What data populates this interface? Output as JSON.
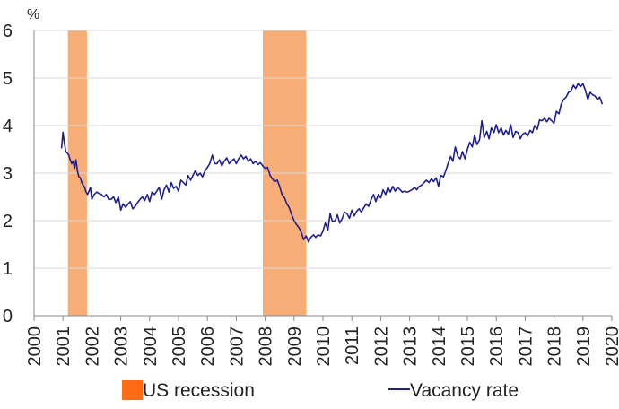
{
  "chart_data": {
    "type": "line",
    "unit_label": "%",
    "xlim": [
      2000,
      2020
    ],
    "ylim": [
      0,
      6
    ],
    "x_ticks": [
      "2000",
      "2001",
      "2002",
      "2003",
      "2004",
      "2005",
      "2006",
      "2007",
      "2008",
      "2009",
      "2010",
      "2011",
      "2012",
      "2013",
      "2014",
      "2015",
      "2016",
      "2017",
      "2018",
      "2019",
      "2020"
    ],
    "y_ticks": [
      "0",
      "1",
      "2",
      "3",
      "4",
      "5",
      "6"
    ],
    "grid": "horizontal",
    "legend_position": "bottom",
    "recessions": {
      "name": "US recession",
      "color": "#f7ad78",
      "legend_color": "#ff6a13",
      "periods": [
        [
          2001.17,
          2001.83
        ],
        [
          2007.92,
          2009.42
        ]
      ]
    },
    "series": [
      {
        "name": "Vacancy rate",
        "color": "#1f1f8f",
        "points": [
          [
            2000.95,
            3.52
          ],
          [
            2001.0,
            3.86
          ],
          [
            2001.05,
            3.63
          ],
          [
            2001.1,
            3.45
          ],
          [
            2001.15,
            3.42
          ],
          [
            2001.2,
            3.38
          ],
          [
            2001.25,
            3.28
          ],
          [
            2001.3,
            3.2
          ],
          [
            2001.35,
            3.25
          ],
          [
            2001.4,
            3.1
          ],
          [
            2001.45,
            3.28
          ],
          [
            2001.5,
            3.05
          ],
          [
            2001.55,
            2.92
          ],
          [
            2001.6,
            2.9
          ],
          [
            2001.65,
            2.8
          ],
          [
            2001.7,
            2.75
          ],
          [
            2001.75,
            2.7
          ],
          [
            2001.8,
            2.6
          ],
          [
            2001.85,
            2.55
          ],
          [
            2001.9,
            2.62
          ],
          [
            2001.95,
            2.7
          ],
          [
            2002.0,
            2.45
          ],
          [
            2002.08,
            2.55
          ],
          [
            2002.17,
            2.6
          ],
          [
            2002.25,
            2.57
          ],
          [
            2002.33,
            2.55
          ],
          [
            2002.42,
            2.5
          ],
          [
            2002.5,
            2.55
          ],
          [
            2002.58,
            2.45
          ],
          [
            2002.67,
            2.45
          ],
          [
            2002.75,
            2.5
          ],
          [
            2002.83,
            2.38
          ],
          [
            2002.92,
            2.5
          ],
          [
            2003.0,
            2.22
          ],
          [
            2003.08,
            2.35
          ],
          [
            2003.17,
            2.28
          ],
          [
            2003.25,
            2.35
          ],
          [
            2003.33,
            2.4
          ],
          [
            2003.42,
            2.25
          ],
          [
            2003.5,
            2.3
          ],
          [
            2003.58,
            2.38
          ],
          [
            2003.67,
            2.45
          ],
          [
            2003.75,
            2.5
          ],
          [
            2003.83,
            2.42
          ],
          [
            2003.92,
            2.55
          ],
          [
            2004.0,
            2.4
          ],
          [
            2004.08,
            2.6
          ],
          [
            2004.17,
            2.55
          ],
          [
            2004.25,
            2.62
          ],
          [
            2004.33,
            2.7
          ],
          [
            2004.42,
            2.45
          ],
          [
            2004.5,
            2.65
          ],
          [
            2004.58,
            2.75
          ],
          [
            2004.67,
            2.6
          ],
          [
            2004.75,
            2.8
          ],
          [
            2004.83,
            2.68
          ],
          [
            2004.92,
            2.72
          ],
          [
            2005.0,
            2.62
          ],
          [
            2005.08,
            2.85
          ],
          [
            2005.17,
            2.8
          ],
          [
            2005.25,
            2.75
          ],
          [
            2005.33,
            2.95
          ],
          [
            2005.42,
            2.85
          ],
          [
            2005.5,
            2.95
          ],
          [
            2005.58,
            3.05
          ],
          [
            2005.67,
            2.95
          ],
          [
            2005.75,
            3.0
          ],
          [
            2005.83,
            2.92
          ],
          [
            2005.92,
            3.05
          ],
          [
            2006.0,
            3.12
          ],
          [
            2006.08,
            3.2
          ],
          [
            2006.17,
            3.38
          ],
          [
            2006.25,
            3.2
          ],
          [
            2006.33,
            3.2
          ],
          [
            2006.42,
            3.28
          ],
          [
            2006.5,
            3.15
          ],
          [
            2006.58,
            3.25
          ],
          [
            2006.67,
            3.32
          ],
          [
            2006.75,
            3.2
          ],
          [
            2006.83,
            3.25
          ],
          [
            2006.92,
            3.3
          ],
          [
            2007.0,
            3.2
          ],
          [
            2007.08,
            3.3
          ],
          [
            2007.17,
            3.38
          ],
          [
            2007.25,
            3.3
          ],
          [
            2007.33,
            3.35
          ],
          [
            2007.42,
            3.25
          ],
          [
            2007.5,
            3.3
          ],
          [
            2007.58,
            3.2
          ],
          [
            2007.67,
            3.25
          ],
          [
            2007.75,
            3.18
          ],
          [
            2007.83,
            3.22
          ],
          [
            2007.92,
            3.15
          ],
          [
            2008.0,
            3.1
          ],
          [
            2008.08,
            3.12
          ],
          [
            2008.17,
            2.95
          ],
          [
            2008.25,
            2.88
          ],
          [
            2008.33,
            2.82
          ],
          [
            2008.42,
            2.85
          ],
          [
            2008.5,
            2.72
          ],
          [
            2008.58,
            2.55
          ],
          [
            2008.67,
            2.48
          ],
          [
            2008.75,
            2.35
          ],
          [
            2008.83,
            2.28
          ],
          [
            2008.92,
            2.12
          ],
          [
            2009.0,
            2.0
          ],
          [
            2009.08,
            1.92
          ],
          [
            2009.17,
            1.85
          ],
          [
            2009.25,
            1.75
          ],
          [
            2009.33,
            1.6
          ],
          [
            2009.42,
            1.68
          ],
          [
            2009.5,
            1.55
          ],
          [
            2009.58,
            1.65
          ],
          [
            2009.67,
            1.7
          ],
          [
            2009.75,
            1.65
          ],
          [
            2009.83,
            1.7
          ],
          [
            2009.92,
            1.68
          ],
          [
            2010.0,
            1.78
          ],
          [
            2010.08,
            1.95
          ],
          [
            2010.17,
            1.8
          ],
          [
            2010.25,
            2.15
          ],
          [
            2010.33,
            1.98
          ],
          [
            2010.42,
            2.0
          ],
          [
            2010.5,
            2.12
          ],
          [
            2010.58,
            1.95
          ],
          [
            2010.67,
            2.05
          ],
          [
            2010.75,
            2.18
          ],
          [
            2010.83,
            2.15
          ],
          [
            2010.92,
            2.05
          ],
          [
            2011.0,
            2.22
          ],
          [
            2011.08,
            2.1
          ],
          [
            2011.17,
            2.2
          ],
          [
            2011.25,
            2.25
          ],
          [
            2011.33,
            2.18
          ],
          [
            2011.42,
            2.28
          ],
          [
            2011.5,
            2.35
          ],
          [
            2011.58,
            2.3
          ],
          [
            2011.67,
            2.45
          ],
          [
            2011.75,
            2.55
          ],
          [
            2011.83,
            2.4
          ],
          [
            2011.92,
            2.55
          ],
          [
            2012.0,
            2.48
          ],
          [
            2012.08,
            2.65
          ],
          [
            2012.17,
            2.55
          ],
          [
            2012.25,
            2.7
          ],
          [
            2012.33,
            2.6
          ],
          [
            2012.42,
            2.72
          ],
          [
            2012.5,
            2.62
          ],
          [
            2012.58,
            2.7
          ],
          [
            2012.67,
            2.65
          ],
          [
            2012.75,
            2.6
          ],
          [
            2012.83,
            2.62
          ],
          [
            2012.92,
            2.6
          ],
          [
            2013.0,
            2.62
          ],
          [
            2013.08,
            2.65
          ],
          [
            2013.17,
            2.7
          ],
          [
            2013.25,
            2.65
          ],
          [
            2013.33,
            2.72
          ],
          [
            2013.42,
            2.75
          ],
          [
            2013.5,
            2.8
          ],
          [
            2013.58,
            2.85
          ],
          [
            2013.67,
            2.8
          ],
          [
            2013.75,
            2.88
          ],
          [
            2013.83,
            2.82
          ],
          [
            2013.92,
            2.9
          ],
          [
            2014.0,
            2.72
          ],
          [
            2014.08,
            2.95
          ],
          [
            2014.17,
            2.92
          ],
          [
            2014.25,
            3.05
          ],
          [
            2014.33,
            3.2
          ],
          [
            2014.42,
            3.35
          ],
          [
            2014.5,
            3.25
          ],
          [
            2014.58,
            3.55
          ],
          [
            2014.67,
            3.35
          ],
          [
            2014.75,
            3.3
          ],
          [
            2014.83,
            3.45
          ],
          [
            2014.92,
            3.3
          ],
          [
            2015.0,
            3.5
          ],
          [
            2015.08,
            3.65
          ],
          [
            2015.17,
            3.55
          ],
          [
            2015.25,
            3.8
          ],
          [
            2015.33,
            3.6
          ],
          [
            2015.42,
            3.7
          ],
          [
            2015.5,
            4.1
          ],
          [
            2015.58,
            3.75
          ],
          [
            2015.67,
            3.88
          ],
          [
            2015.75,
            3.72
          ],
          [
            2015.83,
            3.95
          ],
          [
            2015.92,
            3.85
          ],
          [
            2016.0,
            4.02
          ],
          [
            2016.08,
            3.85
          ],
          [
            2016.17,
            3.95
          ],
          [
            2016.25,
            3.8
          ],
          [
            2016.33,
            3.9
          ],
          [
            2016.42,
            3.82
          ],
          [
            2016.5,
            4.02
          ],
          [
            2016.58,
            3.75
          ],
          [
            2016.67,
            3.88
          ],
          [
            2016.75,
            3.85
          ],
          [
            2016.83,
            3.72
          ],
          [
            2016.92,
            3.82
          ],
          [
            2017.0,
            3.85
          ],
          [
            2017.08,
            3.78
          ],
          [
            2017.17,
            3.9
          ],
          [
            2017.25,
            3.85
          ],
          [
            2017.33,
            4.0
          ],
          [
            2017.42,
            3.92
          ],
          [
            2017.5,
            4.12
          ],
          [
            2017.58,
            4.1
          ],
          [
            2017.67,
            4.15
          ],
          [
            2017.75,
            4.08
          ],
          [
            2017.83,
            4.15
          ],
          [
            2017.92,
            4.1
          ],
          [
            2018.0,
            4.05
          ],
          [
            2018.08,
            4.3
          ],
          [
            2018.17,
            4.25
          ],
          [
            2018.25,
            4.45
          ],
          [
            2018.33,
            4.55
          ],
          [
            2018.42,
            4.6
          ],
          [
            2018.5,
            4.7
          ],
          [
            2018.58,
            4.72
          ],
          [
            2018.67,
            4.85
          ],
          [
            2018.75,
            4.78
          ],
          [
            2018.83,
            4.88
          ],
          [
            2018.92,
            4.82
          ],
          [
            2019.0,
            4.88
          ],
          [
            2019.08,
            4.75
          ],
          [
            2019.17,
            4.55
          ],
          [
            2019.25,
            4.7
          ],
          [
            2019.33,
            4.65
          ],
          [
            2019.42,
            4.62
          ],
          [
            2019.5,
            4.55
          ],
          [
            2019.58,
            4.6
          ],
          [
            2019.67,
            4.45
          ]
        ]
      }
    ]
  }
}
